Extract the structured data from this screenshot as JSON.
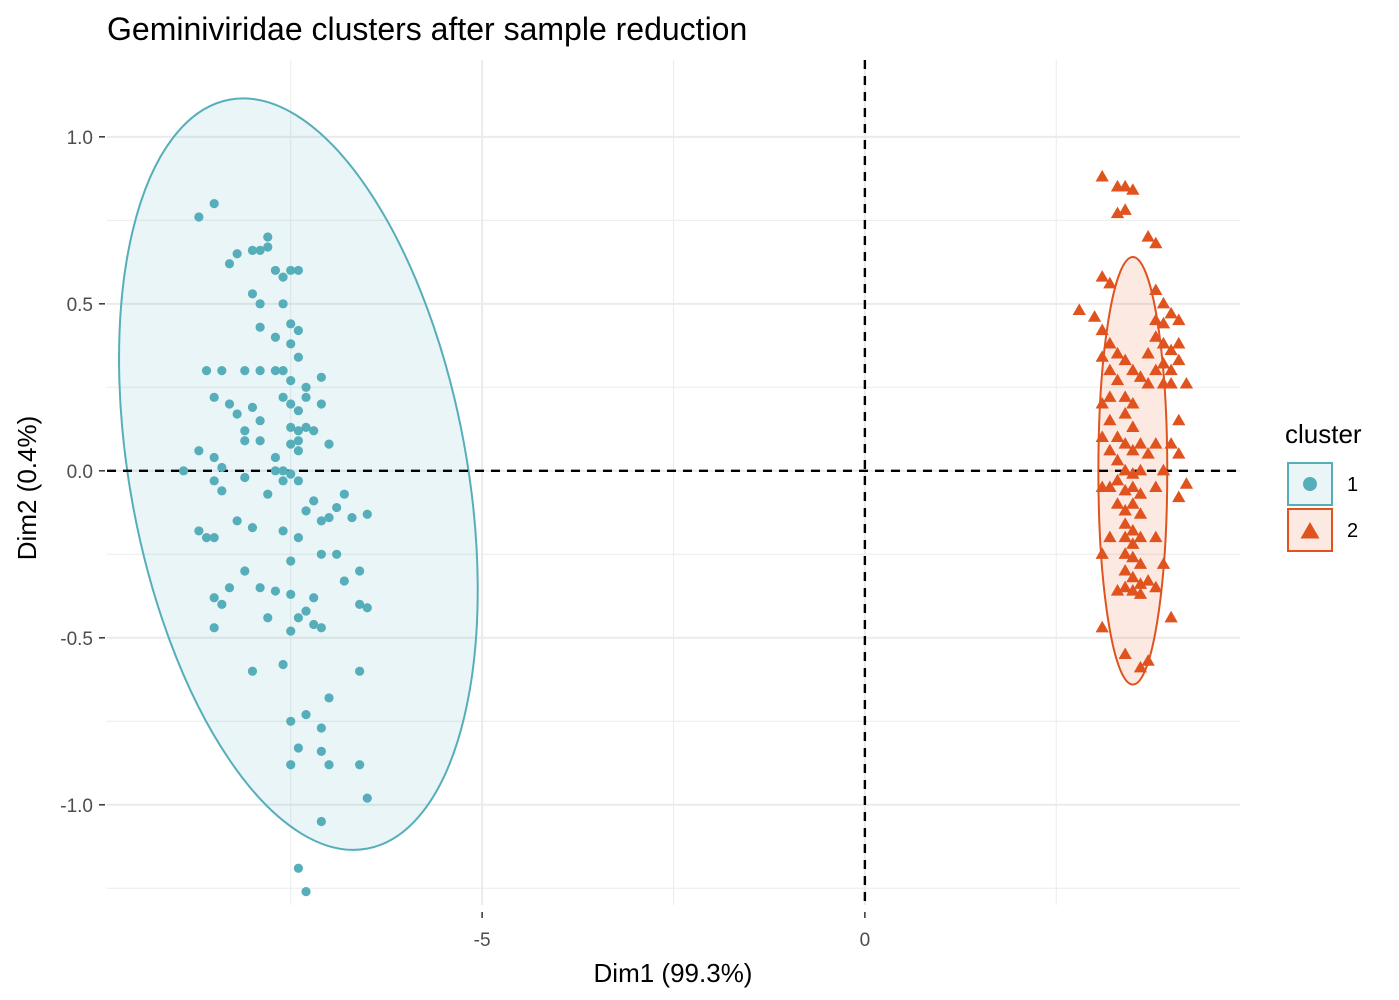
{
  "chart_data": {
    "type": "scatter",
    "title": "Geminiviridae clusters after sample reduction",
    "xlabel": "Dim1 (99.3%)",
    "ylabel": "Dim2 (0.4%)",
    "xlim": [
      -9.9,
      4.9
    ],
    "ylim": [
      -1.3,
      1.23
    ],
    "x_ticks": [
      -5,
      0
    ],
    "x_tick_labels": [
      "-5",
      "0"
    ],
    "y_ticks": [
      -1.0,
      -0.5,
      0.0,
      0.5,
      1.0
    ],
    "y_tick_labels": [
      "-1.0",
      "-0.5",
      "0.0",
      "0.5",
      "1.0"
    ],
    "reference_lines": {
      "x": 0,
      "y": 0,
      "style": "dashed"
    },
    "grid": true,
    "legend": {
      "title": "cluster",
      "position": "right"
    },
    "series": [
      {
        "name": "1",
        "color": "#56AEBA",
        "marker": "circle",
        "ellipse": {
          "cx": -7.4,
          "cy": -0.01,
          "rx": 2.2,
          "ry": 1.14,
          "rotation_deg": -10.4
        },
        "points": [
          [
            -8.7,
            0.76
          ],
          [
            -8.5,
            0.8
          ],
          [
            -8.6,
            0.3
          ],
          [
            -8.3,
            0.62
          ],
          [
            -8.2,
            0.65
          ],
          [
            -8.0,
            0.66
          ],
          [
            -7.9,
            0.66
          ],
          [
            -7.8,
            0.7
          ],
          [
            -7.8,
            0.67
          ],
          [
            -7.7,
            0.6
          ],
          [
            -7.5,
            0.6
          ],
          [
            -7.4,
            0.6
          ],
          [
            -7.6,
            0.58
          ],
          [
            -8.0,
            0.53
          ],
          [
            -7.9,
            0.5
          ],
          [
            -7.6,
            0.5
          ],
          [
            -7.9,
            0.43
          ],
          [
            -7.7,
            0.4
          ],
          [
            -7.5,
            0.44
          ],
          [
            -7.4,
            0.42
          ],
          [
            -7.5,
            0.38
          ],
          [
            -7.4,
            0.34
          ],
          [
            -7.7,
            0.3
          ],
          [
            -7.6,
            0.3
          ],
          [
            -7.5,
            0.27
          ],
          [
            -7.3,
            0.25
          ],
          [
            -7.3,
            0.22
          ],
          [
            -7.4,
            0.18
          ],
          [
            -7.5,
            0.2
          ],
          [
            -7.1,
            0.28
          ],
          [
            -7.1,
            0.2
          ],
          [
            -7.6,
            0.22
          ],
          [
            -7.9,
            0.3
          ],
          [
            -8.1,
            0.3
          ],
          [
            -8.4,
            0.3
          ],
          [
            -8.5,
            0.22
          ],
          [
            -8.3,
            0.2
          ],
          [
            -8.2,
            0.17
          ],
          [
            -8.0,
            0.19
          ],
          [
            -7.9,
            0.15
          ],
          [
            -8.1,
            0.12
          ],
          [
            -8.1,
            0.09
          ],
          [
            -7.9,
            0.09
          ],
          [
            -7.5,
            0.13
          ],
          [
            -7.4,
            0.12
          ],
          [
            -7.3,
            0.13
          ],
          [
            -7.2,
            0.12
          ],
          [
            -7.4,
            0.09
          ],
          [
            -7.5,
            0.08
          ],
          [
            -7.4,
            0.06
          ],
          [
            -7.0,
            0.08
          ],
          [
            -7.7,
            0.04
          ],
          [
            -7.6,
            0.0
          ],
          [
            -7.7,
            0.0
          ],
          [
            -7.5,
            -0.01
          ],
          [
            -7.6,
            -0.03
          ],
          [
            -8.7,
            0.06
          ],
          [
            -8.5,
            0.04
          ],
          [
            -8.4,
            0.01
          ],
          [
            -8.1,
            -0.02
          ],
          [
            -8.9,
            0.0
          ],
          [
            -8.5,
            -0.03
          ],
          [
            -8.4,
            -0.06
          ],
          [
            -7.8,
            -0.07
          ],
          [
            -7.4,
            -0.03
          ],
          [
            -7.2,
            -0.09
          ],
          [
            -7.3,
            -0.12
          ],
          [
            -7.1,
            -0.15
          ],
          [
            -7.0,
            -0.14
          ],
          [
            -6.8,
            -0.07
          ],
          [
            -6.9,
            -0.11
          ],
          [
            -6.7,
            -0.14
          ],
          [
            -6.5,
            -0.13
          ],
          [
            -8.7,
            -0.18
          ],
          [
            -8.5,
            -0.2
          ],
          [
            -8.6,
            -0.2
          ],
          [
            -8.2,
            -0.15
          ],
          [
            -8.0,
            -0.17
          ],
          [
            -7.6,
            -0.18
          ],
          [
            -7.4,
            -0.2
          ],
          [
            -7.1,
            -0.25
          ],
          [
            -6.9,
            -0.25
          ],
          [
            -7.5,
            -0.27
          ],
          [
            -8.1,
            -0.3
          ],
          [
            -8.3,
            -0.35
          ],
          [
            -8.5,
            -0.38
          ],
          [
            -8.4,
            -0.4
          ],
          [
            -7.9,
            -0.35
          ],
          [
            -7.7,
            -0.36
          ],
          [
            -7.5,
            -0.37
          ],
          [
            -7.2,
            -0.38
          ],
          [
            -6.8,
            -0.33
          ],
          [
            -6.6,
            -0.3
          ],
          [
            -6.6,
            -0.4
          ],
          [
            -6.5,
            -0.41
          ],
          [
            -7.3,
            -0.42
          ],
          [
            -7.4,
            -0.44
          ],
          [
            -7.5,
            -0.48
          ],
          [
            -7.2,
            -0.46
          ],
          [
            -7.1,
            -0.47
          ],
          [
            -8.5,
            -0.47
          ],
          [
            -7.8,
            -0.44
          ],
          [
            -8.0,
            -0.6
          ],
          [
            -7.6,
            -0.58
          ],
          [
            -6.6,
            -0.6
          ],
          [
            -7.0,
            -0.68
          ],
          [
            -7.3,
            -0.73
          ],
          [
            -7.5,
            -0.75
          ],
          [
            -7.1,
            -0.77
          ],
          [
            -7.4,
            -0.83
          ],
          [
            -7.1,
            -0.84
          ],
          [
            -7.5,
            -0.88
          ],
          [
            -7.0,
            -0.88
          ],
          [
            -6.6,
            -0.88
          ],
          [
            -6.5,
            -0.98
          ],
          [
            -7.1,
            -1.05
          ],
          [
            -7.4,
            -1.19
          ],
          [
            -7.3,
            -1.26
          ]
        ]
      },
      {
        "name": "2",
        "color": "#E0531F",
        "marker": "triangle",
        "ellipse": {
          "cx": 3.5,
          "cy": 0.0,
          "rx": 0.45,
          "ry": 0.64,
          "rotation_deg": 0
        },
        "points": [
          [
            3.1,
            0.88
          ],
          [
            3.3,
            0.85
          ],
          [
            3.4,
            0.85
          ],
          [
            3.5,
            0.84
          ],
          [
            3.3,
            0.77
          ],
          [
            3.4,
            0.78
          ],
          [
            3.7,
            0.7
          ],
          [
            3.8,
            0.68
          ],
          [
            3.1,
            0.58
          ],
          [
            3.2,
            0.56
          ],
          [
            2.8,
            0.48
          ],
          [
            3.0,
            0.46
          ],
          [
            3.8,
            0.54
          ],
          [
            3.9,
            0.5
          ],
          [
            4.0,
            0.47
          ],
          [
            3.8,
            0.45
          ],
          [
            3.9,
            0.44
          ],
          [
            4.1,
            0.45
          ],
          [
            3.8,
            0.4
          ],
          [
            3.9,
            0.38
          ],
          [
            4.0,
            0.36
          ],
          [
            4.1,
            0.38
          ],
          [
            3.7,
            0.35
          ],
          [
            3.8,
            0.3
          ],
          [
            3.9,
            0.32
          ],
          [
            4.0,
            0.3
          ],
          [
            4.1,
            0.33
          ],
          [
            3.1,
            0.42
          ],
          [
            3.2,
            0.38
          ],
          [
            3.1,
            0.34
          ],
          [
            3.3,
            0.35
          ],
          [
            3.4,
            0.33
          ],
          [
            3.5,
            0.3
          ],
          [
            3.6,
            0.28
          ],
          [
            3.7,
            0.26
          ],
          [
            3.9,
            0.26
          ],
          [
            4.0,
            0.26
          ],
          [
            4.2,
            0.26
          ],
          [
            3.2,
            0.3
          ],
          [
            3.3,
            0.27
          ],
          [
            3.2,
            0.22
          ],
          [
            3.4,
            0.22
          ],
          [
            3.5,
            0.2
          ],
          [
            3.1,
            0.2
          ],
          [
            3.2,
            0.15
          ],
          [
            3.4,
            0.17
          ],
          [
            3.5,
            0.13
          ],
          [
            3.3,
            0.1
          ],
          [
            3.4,
            0.08
          ],
          [
            3.5,
            0.06
          ],
          [
            3.6,
            0.08
          ],
          [
            3.7,
            0.05
          ],
          [
            3.8,
            0.08
          ],
          [
            4.0,
            0.08
          ],
          [
            4.1,
            0.05
          ],
          [
            3.2,
            0.06
          ],
          [
            3.1,
            0.1
          ],
          [
            3.3,
            0.03
          ],
          [
            3.4,
            0.0
          ],
          [
            3.5,
            -0.01
          ],
          [
            3.6,
            0.0
          ],
          [
            3.3,
            -0.03
          ],
          [
            3.4,
            -0.06
          ],
          [
            3.2,
            -0.05
          ],
          [
            3.5,
            -0.05
          ],
          [
            3.6,
            -0.07
          ],
          [
            3.3,
            -0.1
          ],
          [
            3.4,
            -0.12
          ],
          [
            3.5,
            -0.1
          ],
          [
            3.6,
            -0.13
          ],
          [
            3.4,
            -0.16
          ],
          [
            3.5,
            -0.18
          ],
          [
            3.4,
            -0.2
          ],
          [
            3.5,
            -0.22
          ],
          [
            3.6,
            -0.2
          ],
          [
            3.4,
            -0.25
          ],
          [
            3.5,
            -0.26
          ],
          [
            3.6,
            -0.28
          ],
          [
            3.4,
            -0.3
          ],
          [
            3.5,
            -0.32
          ],
          [
            3.6,
            -0.34
          ],
          [
            3.4,
            -0.35
          ],
          [
            3.5,
            -0.36
          ],
          [
            3.6,
            -0.37
          ],
          [
            3.3,
            -0.36
          ],
          [
            3.7,
            -0.33
          ],
          [
            3.8,
            -0.35
          ],
          [
            3.9,
            -0.28
          ],
          [
            3.8,
            -0.2
          ],
          [
            3.1,
            -0.25
          ],
          [
            3.2,
            -0.2
          ],
          [
            3.1,
            -0.05
          ],
          [
            3.8,
            -0.05
          ],
          [
            4.1,
            -0.08
          ],
          [
            4.2,
            -0.04
          ],
          [
            4.1,
            0.15
          ],
          [
            3.9,
            0.0
          ],
          [
            4.0,
            -0.44
          ],
          [
            3.1,
            -0.47
          ],
          [
            3.4,
            -0.55
          ],
          [
            3.6,
            -0.59
          ],
          [
            3.7,
            -0.57
          ]
        ]
      }
    ]
  }
}
